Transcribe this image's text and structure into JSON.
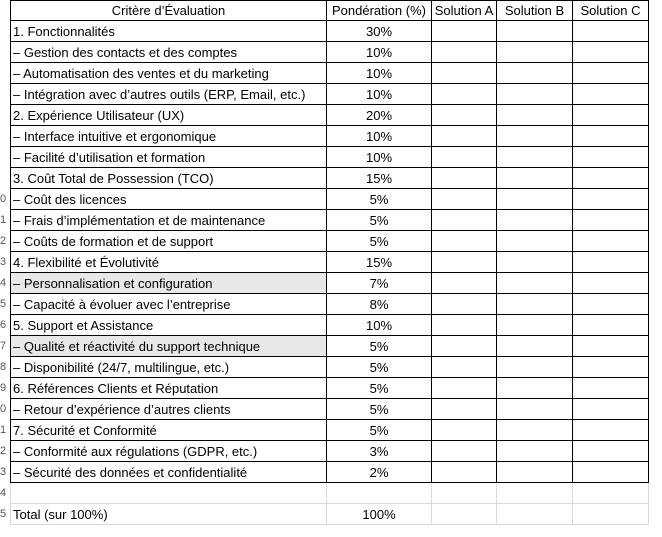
{
  "header": {
    "criteria": "Critère d’Évaluation",
    "weight": "Pondération (%)",
    "solutions": [
      "Solution A",
      "Solution B",
      "Solution C"
    ]
  },
  "rows": [
    {
      "kind": "section",
      "label": "1. Fonctionnalités",
      "weight": "30%",
      "rn": ""
    },
    {
      "kind": "sub",
      "label": "– Gestion des contacts et des comptes",
      "weight": "10%",
      "rn": ""
    },
    {
      "kind": "sub",
      "label": "– Automatisation des ventes et du marketing",
      "weight": "10%",
      "rn": ""
    },
    {
      "kind": "sub",
      "label": "– Intégration avec d’autres outils (ERP, Email, etc.)",
      "weight": "10%",
      "rn": ""
    },
    {
      "kind": "section",
      "label": "2. Expérience Utilisateur (UX)",
      "weight": "20%",
      "rn": ""
    },
    {
      "kind": "sub",
      "label": "– Interface intuitive et ergonomique",
      "weight": "10%",
      "rn": ""
    },
    {
      "kind": "sub",
      "label": "– Facilité d’utilisation et formation",
      "weight": "10%",
      "rn": ""
    },
    {
      "kind": "section",
      "label": "3. Coût Total de Possession (TCO)",
      "weight": "15%",
      "rn": ""
    },
    {
      "kind": "sub",
      "label": "– Coût des licences",
      "weight": "5%",
      "rn": "0"
    },
    {
      "kind": "sub",
      "label": "– Frais d’implémentation et de maintenance",
      "weight": "5%",
      "rn": "1"
    },
    {
      "kind": "sub",
      "label": "– Coûts de formation et de support",
      "weight": "5%",
      "rn": "2"
    },
    {
      "kind": "section",
      "label": "4. Flexibilité et Évolutivité",
      "weight": "15%",
      "rn": "3"
    },
    {
      "kind": "sub",
      "label": "– Personnalisation et configuration",
      "weight": "7%",
      "rn": "4",
      "shade": true
    },
    {
      "kind": "sub",
      "label": "– Capacité à évoluer avec l’entreprise",
      "weight": "8%",
      "rn": "5"
    },
    {
      "kind": "section",
      "label": "5. Support et Assistance",
      "weight": "10%",
      "rn": "6"
    },
    {
      "kind": "sub",
      "label": "– Qualité et réactivité du support technique",
      "weight": "5%",
      "rn": "7",
      "shade": true
    },
    {
      "kind": "sub",
      "label": "– Disponibilité (24/7, multilingue, etc.)",
      "weight": "5%",
      "rn": "8"
    },
    {
      "kind": "section",
      "label": "6. Références Clients et Réputation",
      "weight": "5%",
      "rn": "9"
    },
    {
      "kind": "sub",
      "label": "– Retour d’expérience d’autres clients",
      "weight": "5%",
      "rn": "0"
    },
    {
      "kind": "section",
      "label": "7. Sécurité et Conformité",
      "weight": "5%",
      "rn": "1"
    },
    {
      "kind": "sub",
      "label": "– Conformité aux régulations (GDPR, etc.)",
      "weight": "3%",
      "rn": "2"
    },
    {
      "kind": "sub",
      "label": "– Sécurité des données et confidentialité",
      "weight": "2%",
      "rn": "3"
    },
    {
      "kind": "blank",
      "label": "",
      "weight": "",
      "rn": "4"
    },
    {
      "kind": "total",
      "label": "Total (sur 100%)",
      "weight": "100%",
      "rn": "5"
    }
  ]
}
